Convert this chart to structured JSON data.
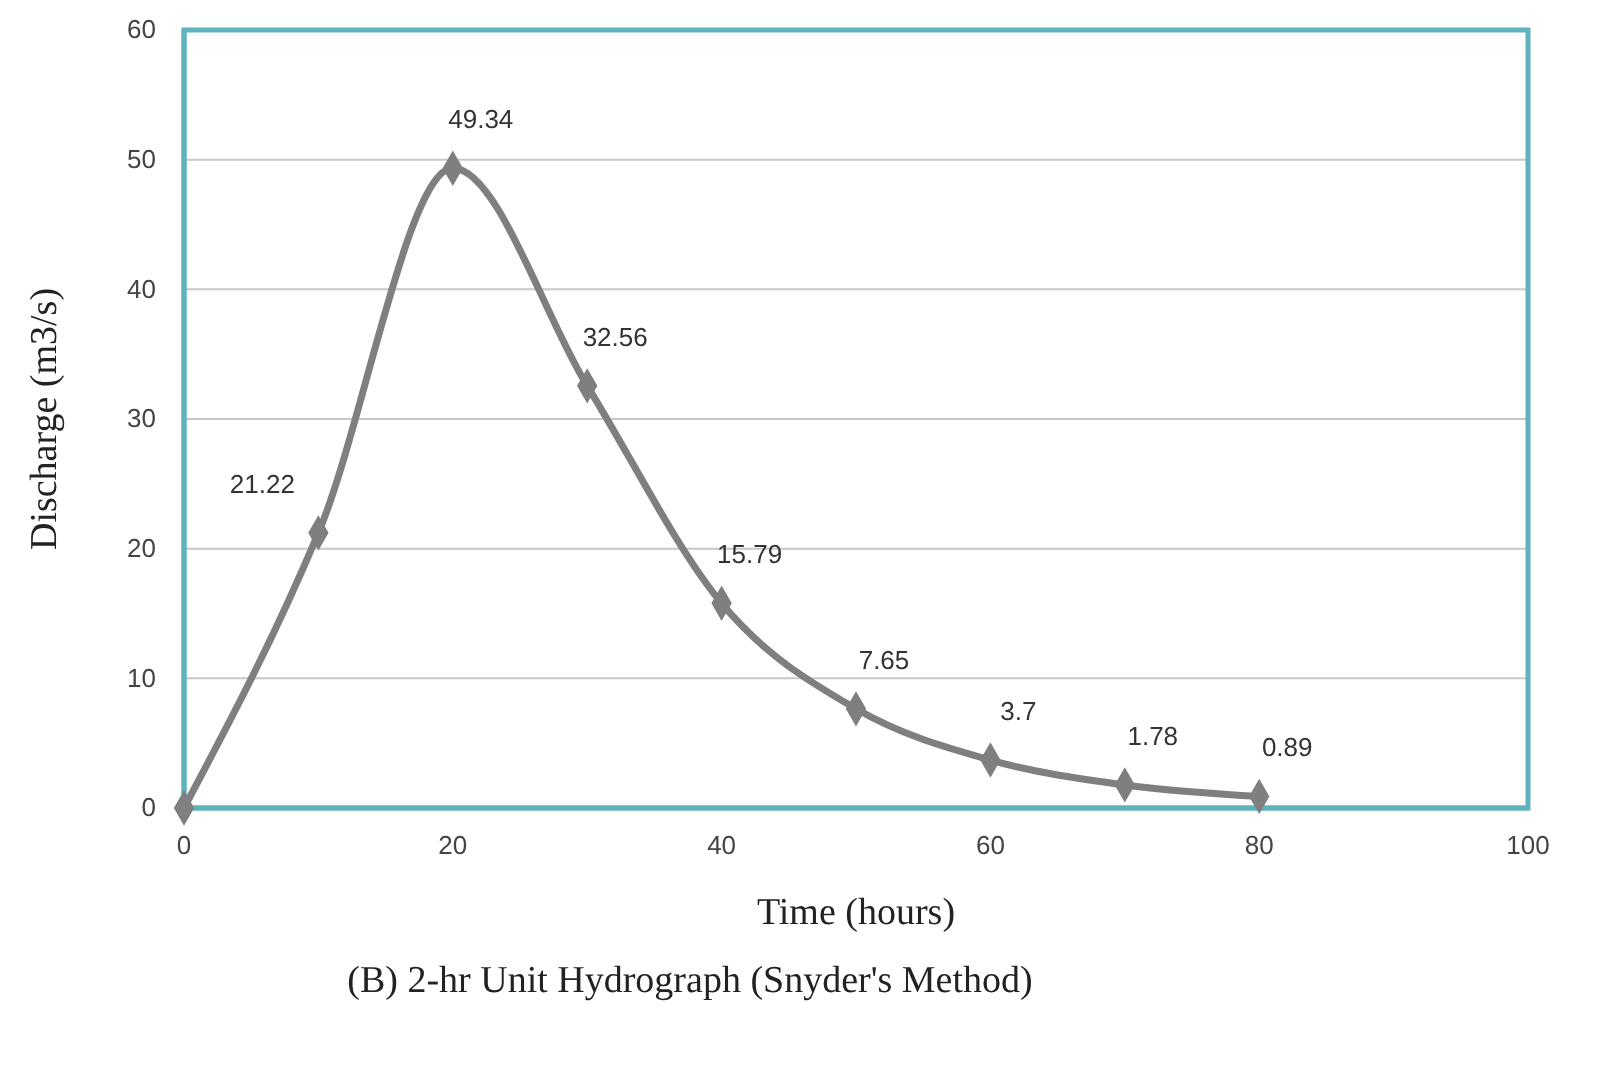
{
  "chart_data": {
    "type": "line",
    "title": "(B) 2-hr Unit Hydrograph (Snyder's Method)",
    "xlabel": "Time (hours)",
    "ylabel": "Discharge (m3/s)",
    "x": [
      0,
      10,
      20,
      30,
      40,
      50,
      60,
      70,
      80
    ],
    "series": [
      {
        "color": "#7f7f7f",
        "values": [
          0,
          21.22,
          49.34,
          32.56,
          15.79,
          7.65,
          3.7,
          1.78,
          0.89
        ],
        "value_labels": [
          null,
          "21.22",
          "49.34",
          "32.56",
          "15.79",
          "7.65",
          "3.7",
          "1.78",
          "0.89"
        ]
      }
    ],
    "xlim": [
      0,
      100
    ],
    "xticks": [
      0,
      20,
      40,
      60,
      80,
      100
    ],
    "ylim": [
      0,
      60
    ],
    "yticks": [
      0,
      10,
      20,
      30,
      40,
      50,
      60
    ],
    "grid": "y",
    "marker": "diamond",
    "line_style": "solid"
  }
}
